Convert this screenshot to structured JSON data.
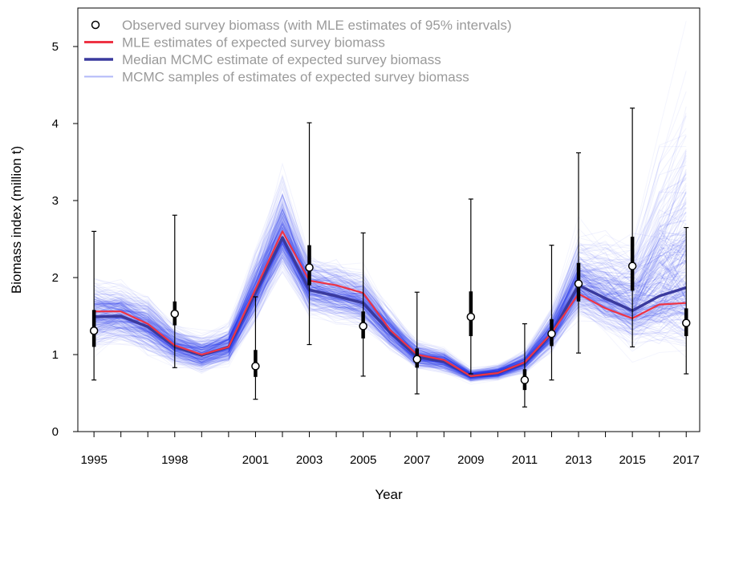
{
  "chart_data": {
    "type": "line",
    "title": "",
    "xlabel": "Year",
    "ylabel": "Biomass index (million t)",
    "xlim": [
      1994.4,
      2017.5
    ],
    "ylim": [
      0,
      5.5
    ],
    "x_ticks_labeled": [
      1995,
      1998,
      2001,
      2003,
      2005,
      2007,
      2009,
      2011,
      2013,
      2015,
      2017
    ],
    "x_ticks_all": [
      1995,
      1996,
      1997,
      1998,
      1999,
      2000,
      2001,
      2002,
      2003,
      2004,
      2005,
      2006,
      2007,
      2008,
      2009,
      2010,
      2011,
      2012,
      2013,
      2014,
      2015,
      2016,
      2017
    ],
    "y_ticks": [
      0,
      1,
      2,
      3,
      4,
      5
    ],
    "grid": false,
    "legend": {
      "placement": "top-left",
      "entries": [
        "Observed survey biomass (with MLE estimates of 95% intervals)",
        "MLE estimates of expected survey biomass",
        "Median MCMC estimate of expected survey biomass",
        "MCMC samples of estimates of expected survey biomass"
      ]
    },
    "colors": {
      "mle": "#ee3344",
      "median": "#3a3a9e",
      "samples": "#2233ee",
      "observed_fill": "#ffffff",
      "observed_stroke": "#000000"
    },
    "observed": {
      "name": "Observed survey biomass (with MLE estimates of 95% intervals)",
      "points": [
        {
          "x": 1995,
          "y": 1.31,
          "lo": 0.67,
          "hi": 2.6,
          "inner_lo": 1.1,
          "inner_hi": 1.58
        },
        {
          "x": 1998,
          "y": 1.53,
          "lo": 0.83,
          "hi": 2.81,
          "inner_lo": 1.38,
          "inner_hi": 1.69
        },
        {
          "x": 2001,
          "y": 0.85,
          "lo": 0.42,
          "hi": 1.75,
          "inner_lo": 0.71,
          "inner_hi": 1.06
        },
        {
          "x": 2003,
          "y": 2.13,
          "lo": 1.13,
          "hi": 4.01,
          "inner_lo": 1.9,
          "inner_hi": 2.42
        },
        {
          "x": 2005,
          "y": 1.37,
          "lo": 0.72,
          "hi": 2.58,
          "inner_lo": 1.21,
          "inner_hi": 1.56
        },
        {
          "x": 2007,
          "y": 0.94,
          "lo": 0.49,
          "hi": 1.81,
          "inner_lo": 0.83,
          "inner_hi": 1.08
        },
        {
          "x": 2009,
          "y": 1.49,
          "lo": 0.75,
          "hi": 3.02,
          "inner_lo": 1.24,
          "inner_hi": 1.82
        },
        {
          "x": 2011,
          "y": 0.67,
          "lo": 0.32,
          "hi": 1.4,
          "inner_lo": 0.54,
          "inner_hi": 0.81
        },
        {
          "x": 2012,
          "y": 1.27,
          "lo": 0.67,
          "hi": 2.42,
          "inner_lo": 1.11,
          "inner_hi": 1.46
        },
        {
          "x": 2013,
          "y": 1.92,
          "lo": 1.02,
          "hi": 3.62,
          "inner_lo": 1.69,
          "inner_hi": 2.19
        },
        {
          "x": 2015,
          "y": 2.15,
          "lo": 1.1,
          "hi": 4.2,
          "inner_lo": 1.83,
          "inner_hi": 2.53
        },
        {
          "x": 2017,
          "y": 1.41,
          "lo": 0.75,
          "hi": 2.65,
          "inner_lo": 1.24,
          "inner_hi": 1.6
        }
      ]
    },
    "series": [
      {
        "name": "MLE estimates of expected survey biomass",
        "x": [
          1995,
          1996,
          1997,
          1998,
          1999,
          2000,
          2001,
          2002,
          2003,
          2004,
          2005,
          2006,
          2007,
          2008,
          2009,
          2010,
          2011,
          2012,
          2013,
          2014,
          2015,
          2016,
          2017
        ],
        "values": [
          1.56,
          1.56,
          1.4,
          1.12,
          1.0,
          1.1,
          1.85,
          2.6,
          1.96,
          1.9,
          1.8,
          1.32,
          1.0,
          0.93,
          0.72,
          0.76,
          0.9,
          1.28,
          1.79,
          1.6,
          1.47,
          1.65,
          1.67
        ]
      },
      {
        "name": "Median MCMC estimate of expected survey biomass",
        "x": [
          1995,
          1996,
          1997,
          1998,
          1999,
          2000,
          2001,
          2002,
          2003,
          2004,
          2005,
          2006,
          2007,
          2008,
          2009,
          2010,
          2011,
          2012,
          2013,
          2014,
          2015,
          2016,
          2017
        ],
        "values": [
          1.49,
          1.5,
          1.36,
          1.1,
          0.99,
          1.1,
          1.8,
          2.52,
          1.84,
          1.76,
          1.67,
          1.29,
          0.97,
          0.91,
          0.72,
          0.76,
          0.89,
          1.27,
          1.9,
          1.73,
          1.57,
          1.76,
          1.87
        ]
      },
      {
        "name": "MCMC samples of estimates of expected survey biomass",
        "x": [
          1995,
          1996,
          1997,
          1998,
          1999,
          2000,
          2001,
          2002,
          2003,
          2004,
          2005,
          2006,
          2007,
          2008,
          2009,
          2010,
          2011,
          2012,
          2013,
          2014,
          2015,
          2016,
          2017
        ],
        "lower": [
          1.0,
          1.06,
          0.98,
          0.8,
          0.7,
          0.82,
          1.35,
          2.0,
          1.45,
          1.38,
          1.3,
          1.01,
          0.78,
          0.75,
          0.63,
          0.65,
          0.74,
          1.02,
          1.45,
          1.25,
          1.05,
          1.02,
          0.9
        ],
        "upper": [
          2.05,
          1.98,
          1.78,
          1.42,
          1.3,
          1.42,
          2.4,
          3.4,
          2.35,
          2.25,
          2.15,
          1.63,
          1.2,
          1.1,
          0.82,
          0.88,
          1.06,
          1.6,
          2.6,
          2.6,
          2.6,
          3.8,
          4.55
        ]
      }
    ]
  }
}
